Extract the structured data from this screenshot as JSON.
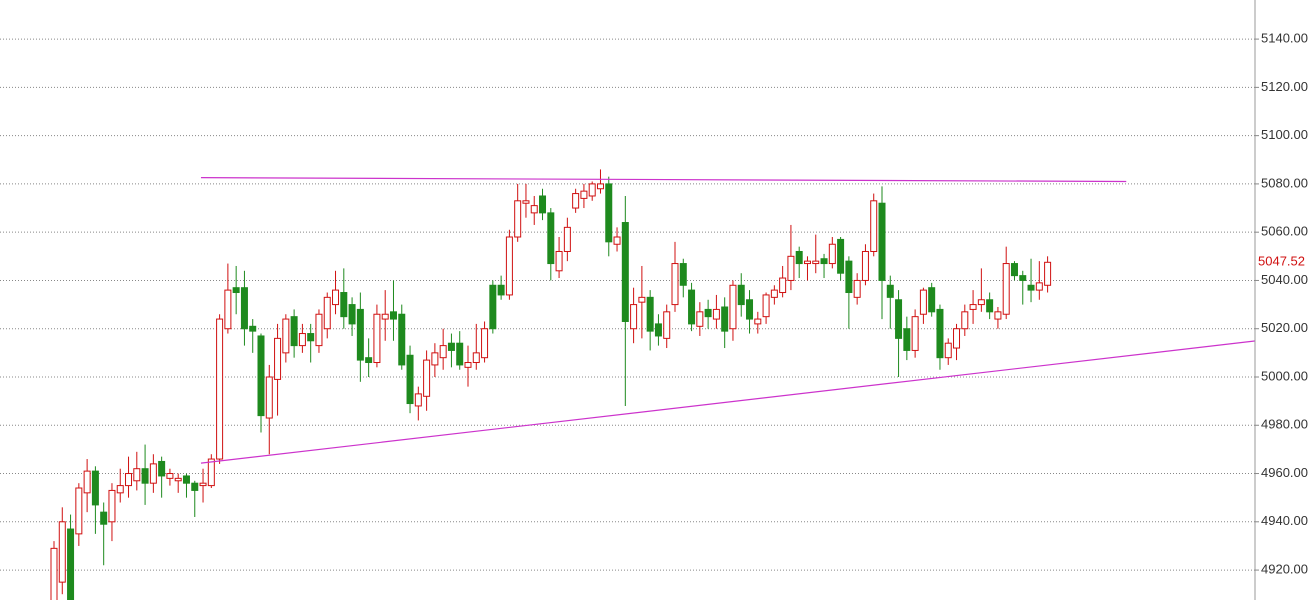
{
  "chart_data": {
    "type": "candlestick",
    "ylim": [
      4907.6,
      5156.2
    ],
    "yticks": [
      {
        "value": 4920,
        "label": "4920.00"
      },
      {
        "value": 4940,
        "label": "4940.00"
      },
      {
        "value": 4960,
        "label": "4960.00"
      },
      {
        "value": 4980,
        "label": "4980.00"
      },
      {
        "value": 5000,
        "label": "5000.00"
      },
      {
        "value": 5020,
        "label": "5020.00"
      },
      {
        "value": 5040,
        "label": "5040.00"
      },
      {
        "value": 5060,
        "label": "5060.00"
      },
      {
        "value": 5080,
        "label": "5080.00"
      },
      {
        "value": 5100,
        "label": "5100.00"
      },
      {
        "value": 5120,
        "label": "5120.00"
      },
      {
        "value": 5140,
        "label": "5140.00"
      }
    ],
    "grid": true,
    "up_color": "#d01010",
    "down_color": "#1e8a1e",
    "open": [
      4905,
      4915,
      4937,
      4935,
      4952,
      4961,
      4944,
      4940,
      4952,
      4955,
      4957,
      4962,
      4956,
      4965,
      4958,
      4957,
      4959,
      4956,
      4955,
      4955,
      4966,
      5020,
      5037,
      5037,
      5021,
      5017,
      4983,
      4999,
      5010,
      5025,
      5013,
      5018,
      5013,
      5020,
      5030,
      5035,
      5030,
      5028,
      5008,
      5006,
      5024,
      5027,
      5026,
      5009,
      4988,
      4992,
      5005,
      5008,
      5014,
      5014,
      5004,
      5006,
      5008,
      5038,
      5038,
      5034,
      5058,
      5072,
      5068,
      5075,
      5068,
      5044,
      5052,
      5070,
      5074,
      5075,
      5078,
      5080,
      5055,
      5064,
      5020,
      5031,
      5033,
      5022,
      5016,
      5030,
      5047,
      5036,
      5021,
      5028,
      5024,
      5029,
      5020,
      5038,
      5032,
      5022,
      5025,
      5033,
      5035,
      5040,
      5052,
      5047,
      5047,
      5049,
      5047,
      5057,
      5048,
      5033,
      5040,
      5052,
      5072,
      5038,
      5032,
      5020,
      5011,
      5026,
      5037,
      5028,
      5008,
      5012,
      5020,
      5028,
      5030,
      5032,
      5024,
      5026,
      5047,
      5042,
      5038,
      5036,
      5038
    ],
    "high": [
      4932,
      4946,
      4943,
      4956,
      4966,
      4963,
      4948,
      4956,
      4962,
      4967,
      4969,
      4972,
      4968,
      4967,
      4962,
      4960,
      4960,
      4957,
      4962,
      4968,
      5026,
      5047,
      5046,
      5044,
      5024,
      5018,
      5005,
      5022,
      5026,
      5028,
      5022,
      5022,
      5028,
      5035,
      5044,
      5045,
      5033,
      5035,
      5016,
      5030,
      5036,
      5040,
      5030,
      5013,
      4996,
      5011,
      5014,
      5020,
      5018,
      5019,
      5013,
      5022,
      5023,
      5040,
      5042,
      5061,
      5080,
      5080,
      5075,
      5078,
      5070,
      5058,
      5066,
      5078,
      5080,
      5081,
      5086,
      5083,
      5062,
      5075,
      5037,
      5046,
      5036,
      5026,
      5030,
      5056,
      5049,
      5039,
      5031,
      5032,
      5034,
      5033,
      5040,
      5043,
      5036,
      5027,
      5035,
      5038,
      5046,
      5063,
      5054,
      5050,
      5059,
      5051,
      5058,
      5058,
      5050,
      5043,
      5055,
      5076,
      5079,
      5042,
      5036,
      5025,
      5028,
      5037,
      5039,
      5030,
      5016,
      5022,
      5030,
      5036,
      5045,
      5035,
      5029,
      5054,
      5048,
      5044,
      5049,
      5048,
      5050
    ],
    "low": [
      4905,
      4910,
      4905,
      4930,
      4944,
      4935,
      4922,
      4932,
      4948,
      4950,
      4953,
      4947,
      4952,
      4950,
      4955,
      4952,
      4950,
      4942,
      4948,
      4954,
      4964,
      5018,
      5026,
      5013,
      5010,
      4977,
      4968,
      4984,
      5006,
      5008,
      5010,
      5006,
      5010,
      5016,
      5026,
      5020,
      5017,
      4998,
      5000,
      5004,
      5015,
      5015,
      5003,
      4985,
      4982,
      4986,
      5000,
      5003,
      5004,
      5003,
      4996,
      5003,
      5006,
      5018,
      5032,
      5032,
      5056,
      5066,
      5063,
      5065,
      5040,
      5041,
      5048,
      5068,
      5070,
      5073,
      5076,
      5050,
      5052,
      4988,
      5014,
      5016,
      5011,
      5013,
      5012,
      5027,
      5033,
      5019,
      5017,
      5020,
      5020,
      5012,
      5015,
      5025,
      5018,
      5018,
      5022,
      5030,
      5033,
      5036,
      5041,
      5040,
      5043,
      5041,
      5045,
      5040,
      5020,
      5030,
      5038,
      5050,
      5024,
      5020,
      5000,
      5007,
      5008,
      5022,
      5025,
      5003,
      5005,
      5007,
      5017,
      5022,
      5027,
      5024,
      5020,
      5024,
      5040,
      5030,
      5031,
      5032,
      5035
    ],
    "close": [
      4929,
      4940,
      4905,
      4954,
      4961,
      4947,
      4939,
      4953,
      4955,
      4960,
      4962,
      4956,
      4964,
      4959,
      4960,
      4958,
      4956,
      4953,
      4956,
      4966,
      5024,
      5036,
      5035,
      5020,
      5019,
      4984,
      5000,
      5016,
      5024,
      5013,
      5018,
      5015,
      5026,
      5033,
      5036,
      5025,
      5022,
      5007,
      5006,
      5026,
      5026,
      5024,
      5005,
      4989,
      4993,
      5007,
      5010,
      5013,
      5011,
      5005,
      5006,
      5010,
      5020,
      5020,
      5034,
      5058,
      5073,
      5073,
      5071,
      5068,
      5047,
      5052,
      5062,
      5076,
      5077,
      5080,
      5080,
      5056,
      5058,
      5023,
      5030,
      5033,
      5019,
      5017,
      5027,
      5047,
      5038,
      5022,
      5027,
      5025,
      5028,
      5019,
      5038,
      5030,
      5024,
      5024,
      5034,
      5036,
      5041,
      5050,
      5047,
      5048,
      5048,
      5047,
      5055,
      5043,
      5035,
      5040,
      5052,
      5073,
      5040,
      5033,
      5016,
      5011,
      5025,
      5036,
      5027,
      5008,
      5014,
      5020,
      5027,
      5030,
      5032,
      5027,
      5027,
      5047,
      5042,
      5040,
      5036,
      5039,
      5047.52
    ],
    "last_price": 5047.52,
    "trendlines": [
      {
        "color": "#cc33cc",
        "x": [
          17.75,
          129.5
        ],
        "y": [
          5082.6,
          5081
        ]
      },
      {
        "color": "#cc33cc",
        "x": [
          17.75,
          145
        ],
        "y": [
          4964.3,
          5014.9
        ]
      }
    ]
  }
}
